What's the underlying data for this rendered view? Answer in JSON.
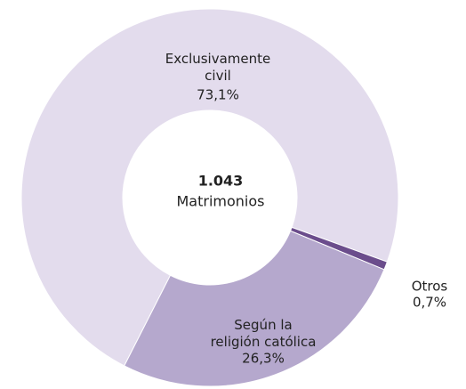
{
  "chart_data": {
    "type": "donut",
    "categories": [
      "Exclusivamente\ncivil",
      "Otros",
      "Según la\nreligión católica"
    ],
    "values": [
      73.1,
      0.7,
      26.3
    ],
    "value_labels": [
      "73,1%",
      "0,7%",
      "26,3%"
    ],
    "colors": [
      "#e3dced",
      "#6b4d8c",
      "#b5a8cd"
    ],
    "center": {
      "value": 1043,
      "label": "1.043",
      "text": "Matrimonios"
    }
  }
}
